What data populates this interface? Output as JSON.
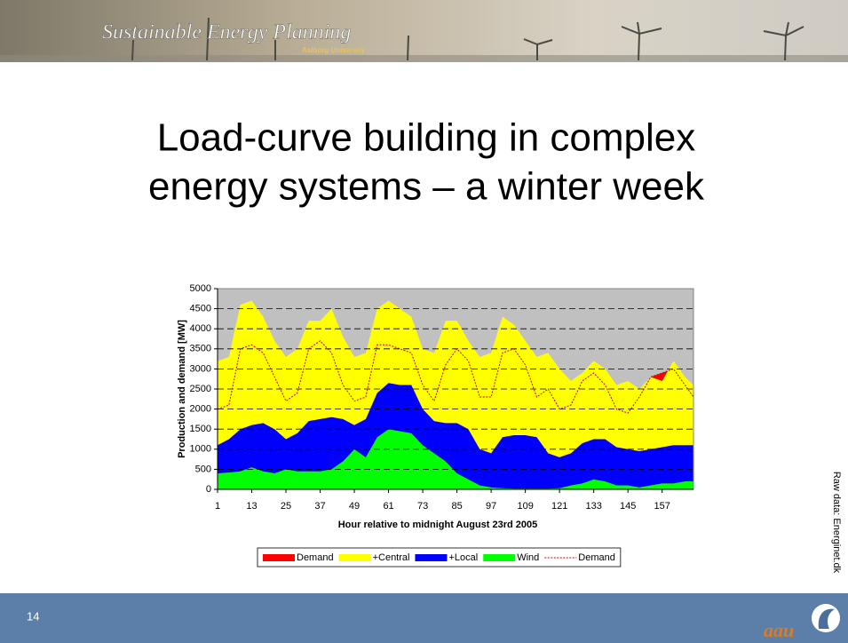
{
  "header": {
    "title": "Sustainable Energy Planning",
    "subtitle": "Aalborg University"
  },
  "title": [
    "Load-curve building in complex",
    "energy systems – a winter week"
  ],
  "source": "Raw data: Energinet.dk",
  "page_number": "14",
  "logo": "aau",
  "chart_data": {
    "type": "area",
    "stacked": true,
    "xlabel": "Hour relative to midnight August 23rd 2005",
    "ylabel": "Production and demand [MW]",
    "x": [
      1,
      5,
      9,
      13,
      17,
      21,
      25,
      29,
      33,
      37,
      41,
      45,
      49,
      53,
      57,
      61,
      65,
      69,
      73,
      77,
      81,
      85,
      89,
      93,
      97,
      101,
      105,
      109,
      113,
      117,
      121,
      125,
      129,
      133,
      137,
      141,
      145,
      149,
      153,
      157,
      161,
      165,
      168
    ],
    "xlim": [
      1,
      168
    ],
    "xticks": [
      1,
      13,
      25,
      37,
      49,
      61,
      73,
      85,
      97,
      109,
      121,
      133,
      145,
      157
    ],
    "ylim": [
      0,
      5000
    ],
    "yticks": [
      0,
      500,
      1000,
      1500,
      2000,
      2500,
      3000,
      3500,
      4000,
      4500,
      5000
    ],
    "grid": true,
    "plot_background": "#c0c0c0",
    "series": [
      {
        "name": "Demand",
        "color": "#ff0000",
        "style": "area",
        "stack": false,
        "values": [
          2000,
          2100,
          3500,
          3600,
          3400,
          2800,
          2200,
          2400,
          3500,
          3700,
          3400,
          2600,
          2200,
          2300,
          3600,
          3600,
          3500,
          3400,
          2600,
          2200,
          3100,
          3500,
          3200,
          2300,
          2300,
          3400,
          3500,
          3100,
          2300,
          2500,
          2000,
          2100,
          2700,
          2900,
          2600,
          2000,
          1900,
          2300,
          2800,
          2900,
          3000,
          2600,
          2300
        ]
      },
      {
        "name": "+Central",
        "color": "#ffff00",
        "style": "area",
        "stack": true,
        "values": [
          2100,
          2050,
          3100,
          3100,
          2650,
          2200,
          2050,
          2100,
          2500,
          2450,
          2700,
          2050,
          1700,
          1650,
          2100,
          2050,
          1900,
          1700,
          1500,
          1700,
          2550,
          2550,
          2200,
          2300,
          2500,
          3000,
          2750,
          2350,
          2000,
          2500,
          2200,
          1800,
          1750,
          1950,
          1750,
          1550,
          1700,
          1550,
          1800,
          1650,
          2100,
          1700,
          1500
        ]
      },
      {
        "name": "+Local",
        "color": "#0000ff",
        "style": "area",
        "stack": true,
        "values": [
          700,
          830,
          1050,
          1050,
          1200,
          1100,
          750,
          950,
          1250,
          1300,
          1300,
          1050,
          600,
          950,
          1100,
          1150,
          1150,
          1200,
          900,
          800,
          950,
          1250,
          1250,
          900,
          850,
          1270,
          1330,
          1330,
          1280,
          880,
          770,
          800,
          1000,
          1000,
          1050,
          950,
          900,
          900,
          900,
          900,
          950,
          900,
          900
        ]
      },
      {
        "name": "Wind",
        "color": "#00ff00",
        "style": "area",
        "stack": true,
        "values": [
          400,
          420,
          450,
          550,
          450,
          400,
          500,
          450,
          450,
          450,
          500,
          700,
          1000,
          800,
          1300,
          1500,
          1450,
          1400,
          1100,
          900,
          700,
          400,
          250,
          100,
          50,
          30,
          20,
          20,
          20,
          20,
          30,
          100,
          150,
          250,
          200,
          100,
          100,
          50,
          100,
          150,
          150,
          200,
          200
        ]
      },
      {
        "name": "Demand",
        "color": "#cc0000",
        "style": "line",
        "stack": false,
        "values": [
          2000,
          2100,
          3500,
          3600,
          3400,
          2800,
          2200,
          2400,
          3500,
          3700,
          3400,
          2600,
          2200,
          2300,
          3600,
          3600,
          3500,
          3400,
          2600,
          2200,
          3100,
          3500,
          3200,
          2300,
          2300,
          3400,
          3500,
          3100,
          2300,
          2500,
          2000,
          2100,
          2700,
          2900,
          2600,
          2000,
          1900,
          2300,
          2800,
          2900,
          3000,
          2600,
          2300
        ]
      }
    ]
  }
}
